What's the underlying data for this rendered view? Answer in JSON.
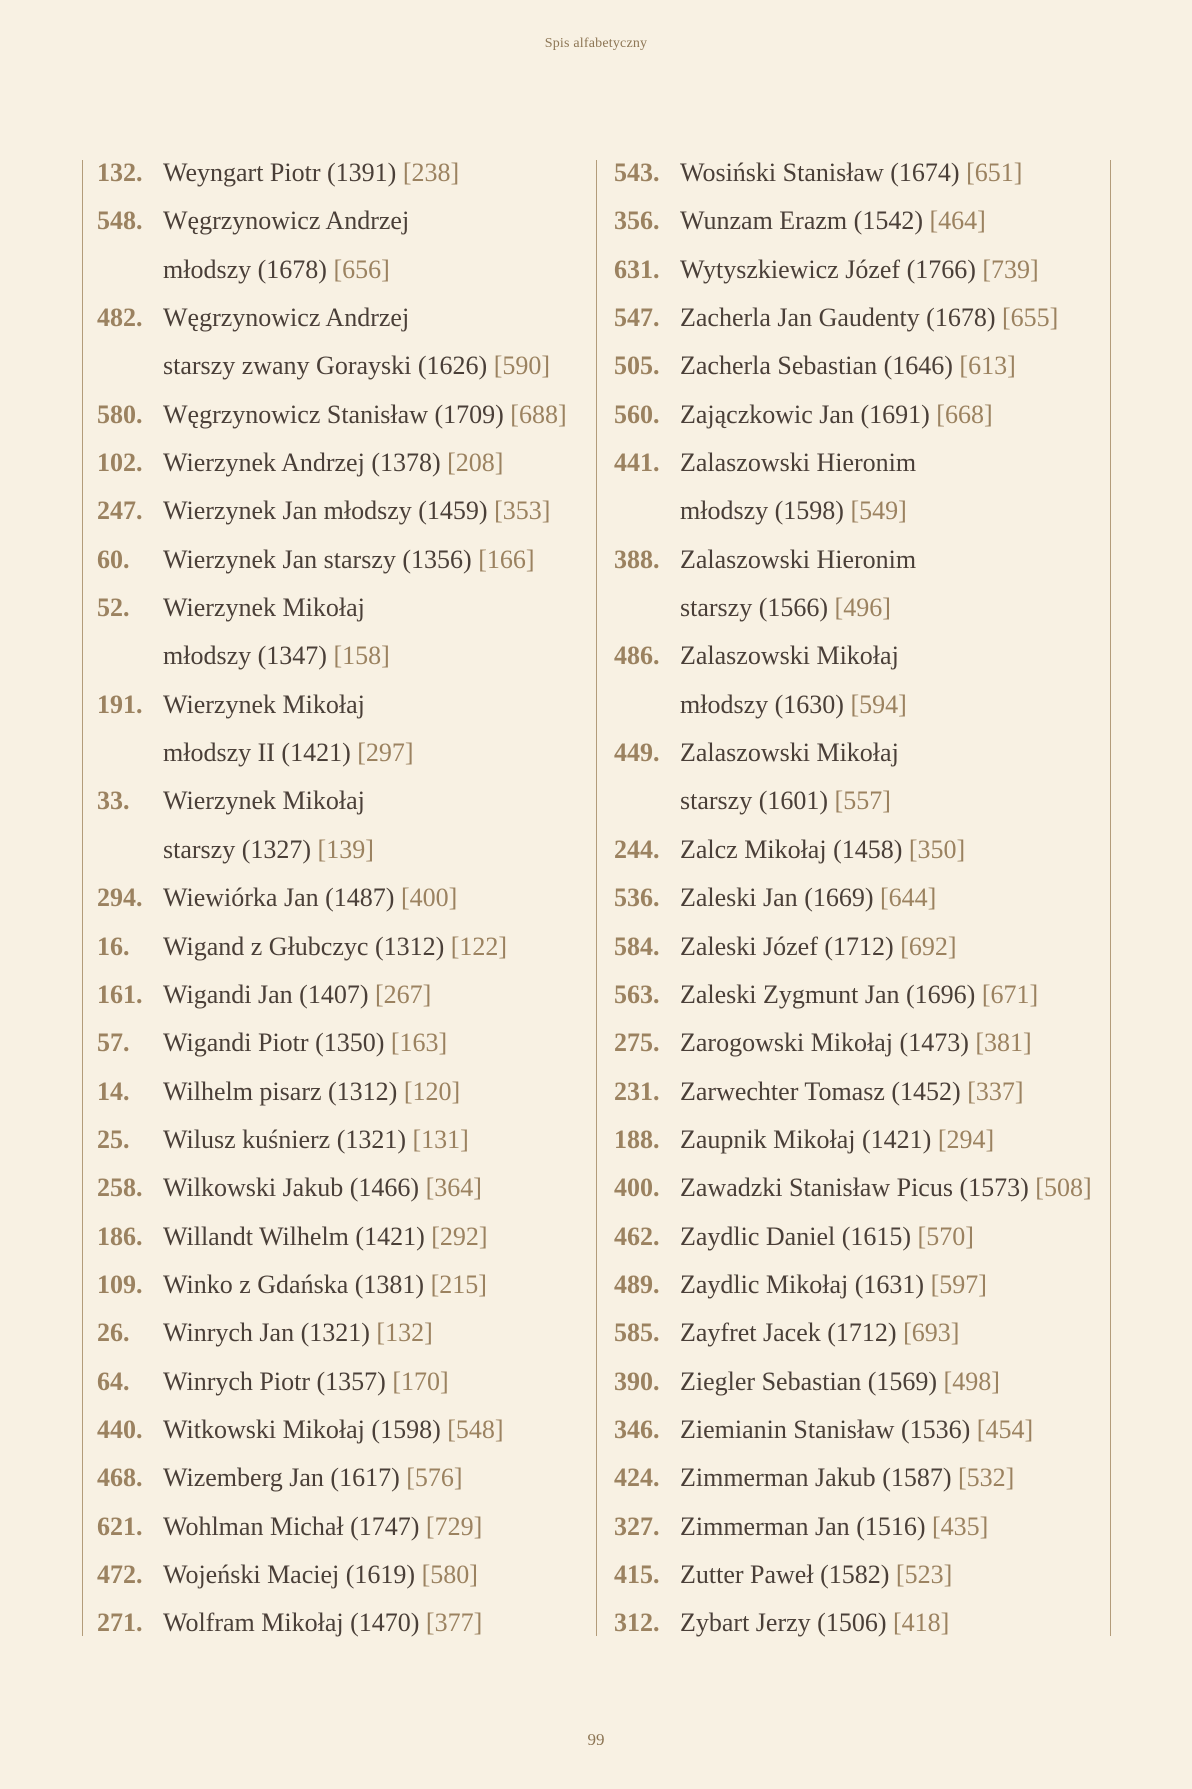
{
  "header": {
    "title": "Spis alfabetyczny"
  },
  "footer": {
    "page_number": "99"
  },
  "colors": {
    "background": "#f8f1e3",
    "accent": "#9b8260",
    "text": "#4a3f38",
    "rule": "#b39c7a"
  },
  "columns": [
    {
      "entries": [
        {
          "num": "132.",
          "name": "Weyngart Piotr",
          "year": "(1391)",
          "page": "[238]"
        },
        {
          "num": "548.",
          "name": "Węgrzynowicz Andrzej",
          "cont": "młodszy",
          "year": "(1678)",
          "page": "[656]"
        },
        {
          "num": "482.",
          "name": "Węgrzynowicz Andrzej",
          "cont": "starszy zwany Gorayski",
          "year": "(1626)",
          "page": "[590]"
        },
        {
          "num": "580.",
          "name": "Węgrzynowicz Stanisław",
          "year": "(1709)",
          "page": "[688]"
        },
        {
          "num": "102.",
          "name": "Wierzynek Andrzej",
          "year": "(1378)",
          "page": "[208]"
        },
        {
          "num": "247.",
          "name": "Wierzynek Jan młodszy",
          "year": "(1459)",
          "page": "[353]"
        },
        {
          "num": "60.",
          "name": "Wierzynek Jan starszy",
          "year": "(1356)",
          "page": "[166]"
        },
        {
          "num": "52.",
          "name": "Wierzynek Mikołaj",
          "cont": "młodszy",
          "year": "(1347)",
          "page": "[158]"
        },
        {
          "num": "191.",
          "name": "Wierzynek Mikołaj",
          "cont": "młodszy II",
          "year": "(1421)",
          "page": "[297]"
        },
        {
          "num": "33.",
          "name": "Wierzynek Mikołaj",
          "cont": "starszy",
          "year": "(1327)",
          "page": "[139]"
        },
        {
          "num": "294.",
          "name": "Wiewiórka Jan",
          "year": "(1487)",
          "page": "[400]"
        },
        {
          "num": "16.",
          "name": "Wigand z Głubczyc",
          "year": "(1312)",
          "page": "[122]"
        },
        {
          "num": "161.",
          "name": "Wigandi Jan",
          "year": "(1407)",
          "page": "[267]"
        },
        {
          "num": "57.",
          "name": "Wigandi Piotr",
          "year": "(1350)",
          "page": "[163]"
        },
        {
          "num": "14.",
          "name": "Wilhelm pisarz",
          "year": "(1312)",
          "page": "[120]"
        },
        {
          "num": "25.",
          "name": "Wilusz kuśnierz",
          "year": "(1321)",
          "page": "[131]"
        },
        {
          "num": "258.",
          "name": "Wilkowski Jakub",
          "year": "(1466)",
          "page": "[364]"
        },
        {
          "num": "186.",
          "name": "Willandt Wilhelm",
          "year": "(1421)",
          "page": "[292]"
        },
        {
          "num": "109.",
          "name": "Winko z Gdańska",
          "year": "(1381)",
          "page": "[215]"
        },
        {
          "num": "26.",
          "name": "Winrych Jan",
          "year": "(1321)",
          "page": "[132]"
        },
        {
          "num": "64.",
          "name": "Winrych Piotr",
          "year": "(1357)",
          "page": "[170]"
        },
        {
          "num": "440.",
          "name": "Witkowski Mikołaj",
          "year": "(1598)",
          "page": "[548]"
        },
        {
          "num": "468.",
          "name": "Wizemberg Jan",
          "year": "(1617)",
          "page": "[576]"
        },
        {
          "num": "621.",
          "name": "Wohlman Michał",
          "year": "(1747)",
          "page": "[729]"
        },
        {
          "num": "472.",
          "name": "Wojeński Maciej",
          "year": "(1619)",
          "page": "[580]"
        },
        {
          "num": "271.",
          "name": "Wolfram Mikołaj",
          "year": "(1470)",
          "page": "[377]"
        }
      ]
    },
    {
      "entries": [
        {
          "num": "543.",
          "name": "Wosiński Stanisław",
          "year": "(1674)",
          "page": "[651]"
        },
        {
          "num": "356.",
          "name": "Wunzam Erazm",
          "year": "(1542)",
          "page": "[464]"
        },
        {
          "num": "631.",
          "name": "Wytyszkiewicz Józef",
          "year": "(1766)",
          "page": "[739]"
        },
        {
          "num": "547.",
          "name": "Zacherla Jan Gaudenty",
          "year": "(1678)",
          "page": "[655]"
        },
        {
          "num": "505.",
          "name": "Zacherla Sebastian",
          "year": "(1646)",
          "page": "[613]"
        },
        {
          "num": "560.",
          "name": "Zajączkowic Jan",
          "year": "(1691)",
          "page": "[668]"
        },
        {
          "num": "441.",
          "name": "Zalaszowski Hieronim",
          "cont": "młodszy",
          "year": "(1598)",
          "page": "[549]"
        },
        {
          "num": "388.",
          "name": "Zalaszowski Hieronim",
          "cont": "starszy",
          "year": "(1566)",
          "page": "[496]"
        },
        {
          "num": "486.",
          "name": "Zalaszowski Mikołaj",
          "cont": "młodszy",
          "year": "(1630)",
          "page": "[594]"
        },
        {
          "num": "449.",
          "name": "Zalaszowski Mikołaj",
          "cont": "starszy",
          "year": "(1601)",
          "page": "[557]"
        },
        {
          "num": "244.",
          "name": "Zalcz Mikołaj",
          "year": "(1458)",
          "page": "[350]"
        },
        {
          "num": "536.",
          "name": "Zaleski Jan",
          "year": "(1669)",
          "page": "[644]"
        },
        {
          "num": "584.",
          "name": "Zaleski Józef",
          "year": "(1712)",
          "page": "[692]"
        },
        {
          "num": "563.",
          "name": "Zaleski Zygmunt Jan",
          "year": "(1696)",
          "page": "[671]"
        },
        {
          "num": "275.",
          "name": "Zarogowski Mikołaj",
          "year": "(1473)",
          "page": "[381]"
        },
        {
          "num": "231.",
          "name": "Zarwechter Tomasz",
          "year": "(1452)",
          "page": "[337]"
        },
        {
          "num": "188.",
          "name": "Zaupnik Mikołaj",
          "year": "(1421)",
          "page": "[294]"
        },
        {
          "num": "400.",
          "name": "Zawadzki Stanisław Picus",
          "year": "(1573)",
          "page": "[508]"
        },
        {
          "num": "462.",
          "name": "Zaydlic Daniel",
          "year": "(1615)",
          "page": "[570]"
        },
        {
          "num": "489.",
          "name": "Zaydlic Mikołaj",
          "year": "(1631)",
          "page": "[597]"
        },
        {
          "num": "585.",
          "name": "Zayfret Jacek",
          "year": "(1712)",
          "page": "[693]"
        },
        {
          "num": "390.",
          "name": "Ziegler Sebastian",
          "year": "(1569)",
          "page": "[498]"
        },
        {
          "num": "346.",
          "name": "Ziemianin Stanisław",
          "year": "(1536)",
          "page": "[454]"
        },
        {
          "num": "424.",
          "name": "Zimmerman Jakub",
          "year": "(1587)",
          "page": "[532]"
        },
        {
          "num": "327.",
          "name": "Zimmerman Jan",
          "year": "(1516)",
          "page": "[435]"
        },
        {
          "num": "415.",
          "name": "Zutter Paweł",
          "year": "(1582)",
          "page": "[523]"
        },
        {
          "num": "312.",
          "name": "Zybart Jerzy",
          "year": "(1506)",
          "page": "[418]"
        }
      ]
    }
  ]
}
